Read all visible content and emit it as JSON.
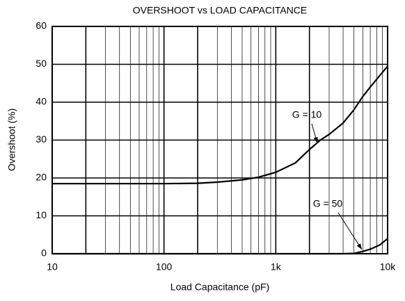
{
  "chart_data": {
    "type": "line",
    "title": "OVERSHOOT vs LOAD CAPACITANCE",
    "xlabel": "Load Capacitance (pF)",
    "ylabel": "Overshoot (%)",
    "xscale": "log",
    "grid": true,
    "x": [
      10,
      20,
      50,
      100,
      200,
      300,
      500,
      700,
      1000,
      1500,
      2000,
      2500,
      3000,
      4000,
      5000,
      6000,
      7000,
      8500,
      10000
    ],
    "series": [
      {
        "name": "G = 10",
        "color": "#000000",
        "values": [
          18.5,
          18.5,
          18.5,
          18.5,
          18.6,
          18.9,
          19.5,
          20.2,
          21.5,
          24,
          27.5,
          30,
          31.5,
          34.5,
          38,
          41.5,
          44,
          47,
          49.5
        ]
      },
      {
        "name": "G = 50",
        "color": "#000000",
        "values": [
          0,
          0,
          0,
          0,
          0,
          0,
          0,
          0,
          0,
          0,
          0,
          0,
          0,
          0,
          0.1,
          0.6,
          1.2,
          2.3,
          4
        ]
      }
    ],
    "xlim": [
      10,
      10000
    ],
    "xticks": [
      10,
      100,
      {
        "value": 1000,
        "label": "1k"
      },
      {
        "value": 10000,
        "label": "10k"
      }
    ],
    "ylim": [
      0,
      60
    ],
    "yticks": [
      0,
      10,
      20,
      30,
      40,
      50,
      60
    ]
  }
}
